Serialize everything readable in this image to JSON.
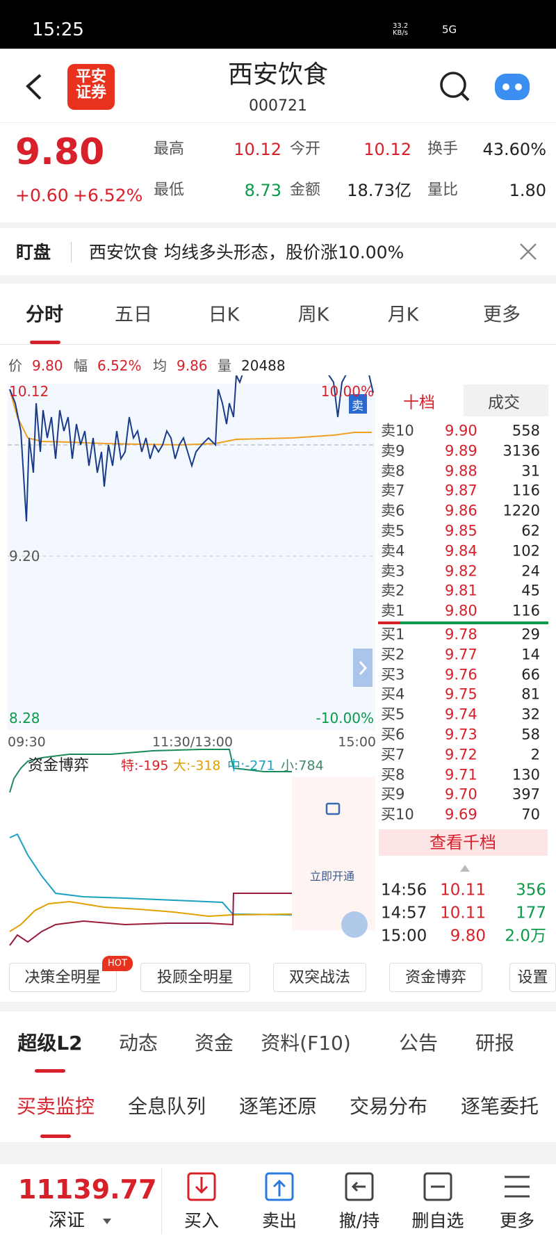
{
  "status": {
    "time": "15:25",
    "speed": "33.2 KB/s",
    "network": "5G"
  },
  "header": {
    "logo": "平安证券",
    "title": "西安饮食",
    "code": "000721"
  },
  "quote": {
    "price": "9.80",
    "change": "+0.60",
    "pct": "+6.52%",
    "stats": [
      {
        "label": "最高",
        "value": "10.12"
      },
      {
        "label": "今开",
        "value": "10.12"
      },
      {
        "label": "换手",
        "value": "43.60%"
      },
      {
        "label": "最低",
        "value": "8.73"
      },
      {
        "label": "金额",
        "value": "18.73亿"
      },
      {
        "label": "量比",
        "value": "1.80"
      }
    ]
  },
  "notice": {
    "label": "盯盘",
    "text": "西安饮食 均线多头形态，股价涨10.00%"
  },
  "tabs": [
    "分时",
    "五日",
    "日K",
    "周K",
    "月K",
    "更多"
  ],
  "info": [
    "价",
    "9.80",
    "幅",
    "6.52%",
    "均",
    "9.86",
    "量",
    "20488"
  ],
  "chart": {
    "top": "10.12",
    "top_pct": "10.00%",
    "mid": "9.20",
    "low": "8.28",
    "low_pct": "-10.00%",
    "times": [
      "09:30",
      "11:30/13:00",
      "15:00"
    ],
    "badge": "卖"
  },
  "fund": {
    "title": "资金博弈",
    "items": [
      "特:-195",
      "大:-318",
      "中:-271",
      "小:784"
    ],
    "unlock": "立即开通"
  },
  "book": {
    "tabs": [
      "十档",
      "成交"
    ],
    "asks": [
      [
        "卖10",
        "9.90",
        "558"
      ],
      [
        "卖9",
        "9.89",
        "3136"
      ],
      [
        "卖8",
        "9.88",
        "31"
      ],
      [
        "卖7",
        "9.87",
        "116"
      ],
      [
        "卖6",
        "9.86",
        "1220"
      ],
      [
        "卖5",
        "9.85",
        "62"
      ],
      [
        "卖4",
        "9.84",
        "102"
      ],
      [
        "卖3",
        "9.82",
        "24"
      ],
      [
        "卖2",
        "9.81",
        "45"
      ],
      [
        "卖1",
        "9.80",
        "116"
      ]
    ],
    "bids": [
      [
        "买1",
        "9.78",
        "29"
      ],
      [
        "买2",
        "9.77",
        "14"
      ],
      [
        "买3",
        "9.76",
        "66"
      ],
      [
        "买4",
        "9.75",
        "81"
      ],
      [
        "买5",
        "9.74",
        "32"
      ],
      [
        "买6",
        "9.73",
        "58"
      ],
      [
        "买7",
        "9.72",
        "2"
      ],
      [
        "买8",
        "9.71",
        "130"
      ],
      [
        "买9",
        "9.70",
        "397"
      ],
      [
        "买10",
        "9.69",
        "70"
      ]
    ],
    "more": "查看千档",
    "trades": [
      [
        "14:56",
        "10.11",
        "356"
      ],
      [
        "14:57",
        "10.11",
        "177"
      ],
      [
        "15:00",
        "9.80",
        "2.0万"
      ]
    ]
  },
  "tools": {
    "items": [
      "决策全明星",
      "投顾全明星",
      "双突战法",
      "资金博弈",
      "设置"
    ],
    "hot": "HOT"
  },
  "tabs2": [
    "超级L2",
    "动态",
    "资金",
    "资料(F10)",
    "公告",
    "研报"
  ],
  "tabs3": [
    "买卖监控",
    "全息队列",
    "逐笔还原",
    "交易分布",
    "逐笔委托"
  ],
  "bottom": {
    "index": "11139.77",
    "market": "深证",
    "actions": [
      "买入",
      "卖出",
      "撤/持",
      "删自选",
      "更多"
    ]
  }
}
